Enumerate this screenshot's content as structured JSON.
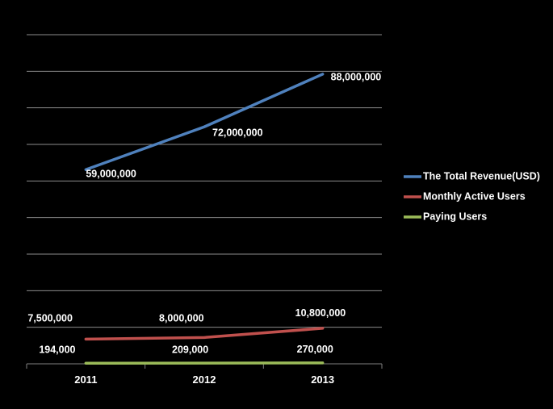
{
  "chart_data": {
    "type": "line",
    "categories": [
      "2011",
      "2012",
      "2013"
    ],
    "ylim": [
      0,
      100000000
    ],
    "grid": true,
    "legend": "right",
    "series": [
      {
        "name": "The Total Revenue(USD)",
        "values": [
          59000000,
          72000000,
          88000000
        ],
        "labels": [
          "59,000,000",
          "72,000,000",
          "88,000,000"
        ],
        "color": "#4f81bd"
      },
      {
        "name": "Monthly Active Users",
        "values": [
          7500000,
          8000000,
          10800000
        ],
        "labels": [
          "7,500,000",
          "8,000,000",
          "10,800,000"
        ],
        "color": "#c0504d"
      },
      {
        "name": "Paying Users",
        "values": [
          194000,
          209000,
          270000
        ],
        "labels": [
          "194,000",
          "209,000",
          "270,000"
        ],
        "color": "#9bbb59"
      }
    ]
  },
  "colors": {
    "background": "#000000",
    "text": "#ffffff",
    "grid": "#8c8c8c"
  }
}
